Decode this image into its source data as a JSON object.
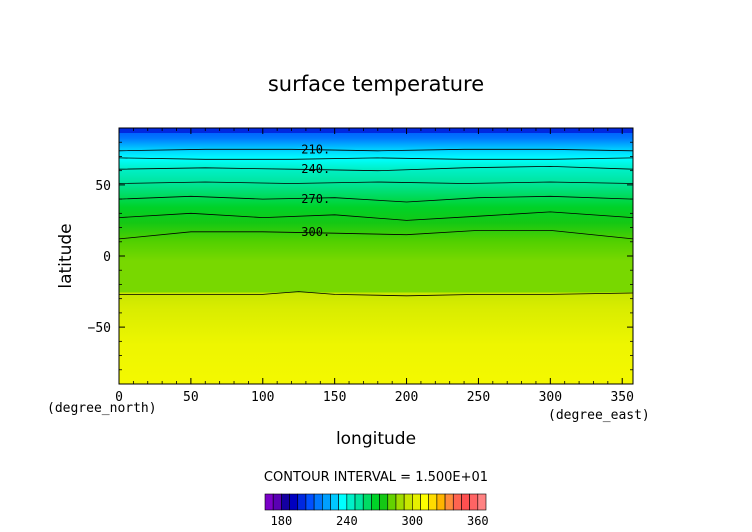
{
  "chart_data": {
    "type": "contour",
    "title": "surface temperature",
    "xlabel": "longitude",
    "ylabel": "latitude",
    "x_unit": "(degree_east)",
    "y_unit": "(degree_north)",
    "xlim": [
      0,
      357.5
    ],
    "ylim": [
      -90,
      90
    ],
    "x_ticks": [
      0,
      50,
      100,
      150,
      200,
      250,
      300,
      350
    ],
    "y_ticks": [
      50,
      0,
      -50
    ],
    "contour_interval_text": "CONTOUR INTERVAL = 1.500E+01",
    "contour_labels": [
      {
        "text": "210.",
        "x": 125,
        "y": 75
      },
      {
        "text": "240.",
        "x": 125,
        "y": 61
      },
      {
        "text": "270.",
        "x": 125,
        "y": 40
      },
      {
        "text": "300.",
        "x": 125,
        "y": 17
      }
    ],
    "contour_lines": [
      {
        "level": 210,
        "x": [
          0,
          60,
          120,
          180,
          240,
          300,
          357.5
        ],
        "y": [
          74,
          75,
          75,
          74,
          75,
          75,
          74
        ]
      },
      {
        "level": 225,
        "x": [
          0,
          60,
          120,
          180,
          240,
          300,
          357.5
        ],
        "y": [
          69,
          68,
          68,
          69,
          68,
          68,
          69
        ]
      },
      {
        "level": 240,
        "x": [
          0,
          60,
          120,
          180,
          240,
          300,
          357.5
        ],
        "y": [
          61,
          62,
          61,
          60,
          62,
          63,
          61
        ]
      },
      {
        "level": 255,
        "x": [
          0,
          60,
          120,
          180,
          240,
          300,
          357.5
        ],
        "y": [
          51,
          52,
          51,
          52,
          51,
          52,
          51
        ]
      },
      {
        "level": 270,
        "x": [
          0,
          50,
          100,
          150,
          200,
          250,
          300,
          357.5
        ],
        "y": [
          40,
          42,
          40,
          41,
          38,
          41,
          42,
          40
        ]
      },
      {
        "level": 285,
        "x": [
          0,
          50,
          100,
          150,
          200,
          250,
          300,
          357.5
        ],
        "y": [
          27,
          30,
          27,
          29,
          25,
          28,
          31,
          27
        ]
      },
      {
        "level": 300,
        "x": [
          0,
          50,
          100,
          150,
          200,
          250,
          300,
          357.5
        ],
        "y": [
          12,
          17,
          17,
          16,
          15,
          18,
          18,
          12
        ]
      },
      {
        "level": 315,
        "x": [
          0,
          50,
          100,
          125,
          150,
          200,
          250,
          300,
          357.5
        ],
        "y": [
          -27,
          -27,
          -27,
          -25,
          -27,
          -28,
          -27,
          -27,
          -26
        ]
      }
    ],
    "colorbar": {
      "tick_labels": [
        180,
        240,
        300,
        360
      ],
      "colors": [
        "#7a00c8",
        "#5a00b4",
        "#1400a0",
        "#0000c0",
        "#0028e0",
        "#0050ff",
        "#0078ff",
        "#00a0ff",
        "#00c8ff",
        "#00ffff",
        "#00f0c8",
        "#00e6a0",
        "#00dc64",
        "#00d228",
        "#14c814",
        "#64d200",
        "#a0dc00",
        "#c8e600",
        "#e6f000",
        "#ffff00",
        "#ffdc00",
        "#ffb400",
        "#ff8c3c",
        "#ff6450",
        "#ff5050",
        "#ff6464",
        "#ff8282"
      ]
    }
  }
}
